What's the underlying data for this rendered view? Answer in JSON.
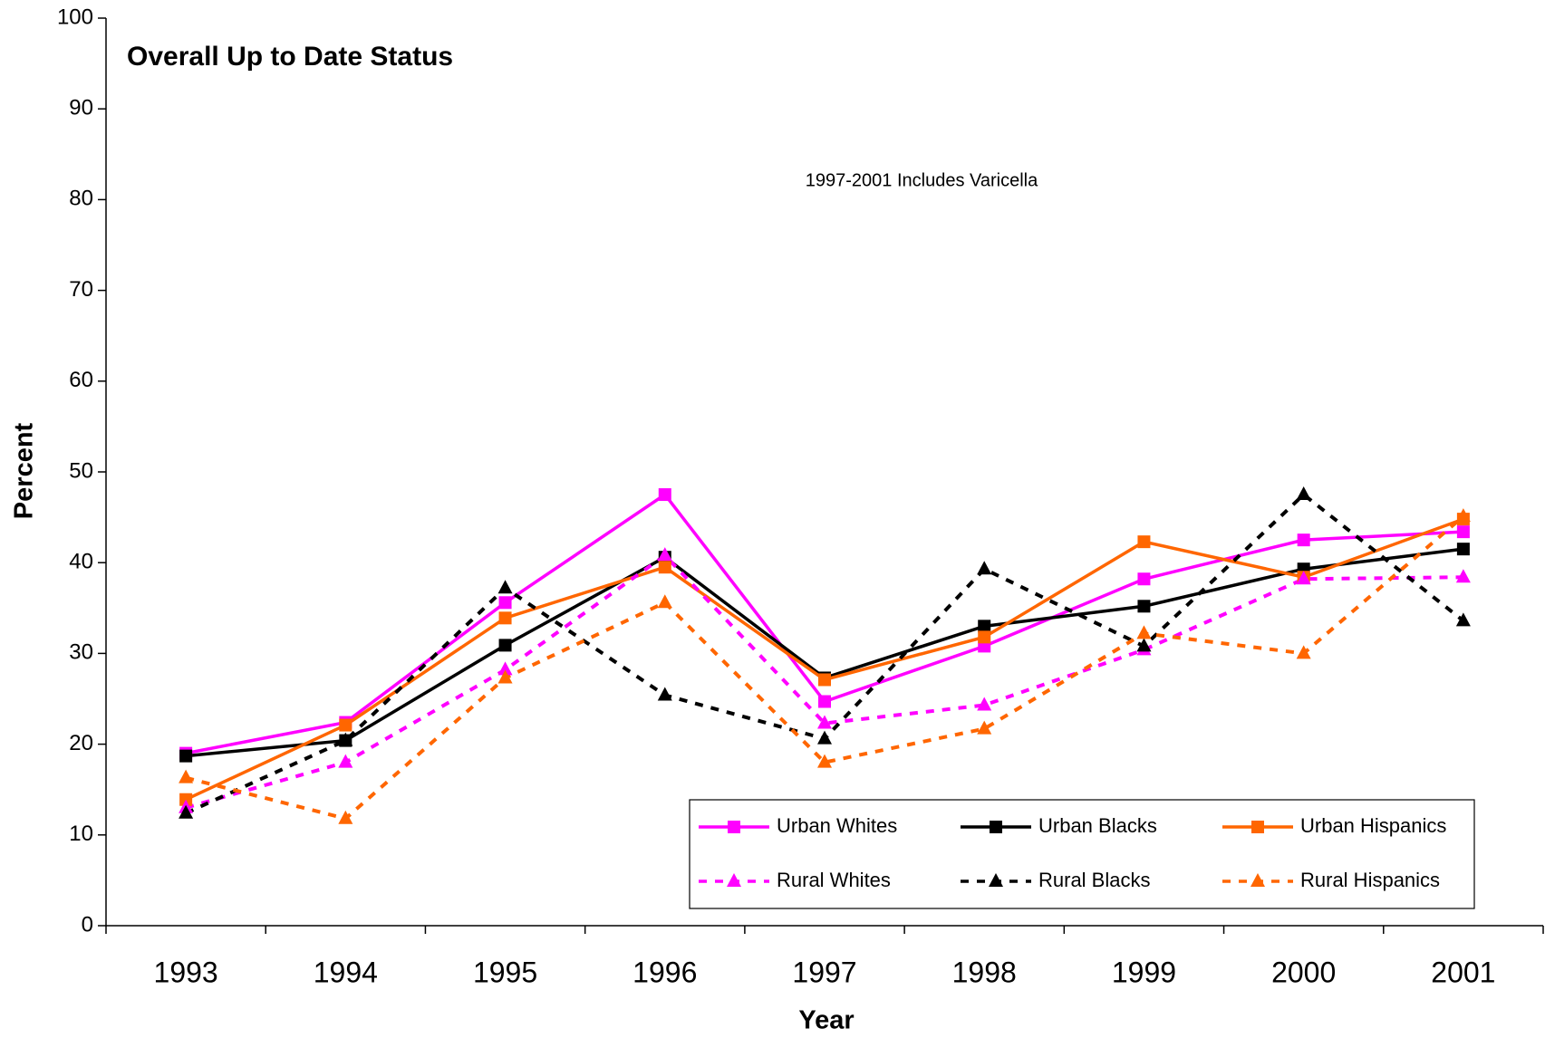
{
  "chart_data": {
    "type": "line",
    "title": "Overall Up to Date Status",
    "annotation": "1997-2001 Includes Varicella",
    "x_label": "Year",
    "y_label": "Percent",
    "categories": [
      "1993",
      "1994",
      "1995",
      "1996",
      "1997",
      "1998",
      "1999",
      "2000",
      "2001"
    ],
    "ylim": [
      0,
      100
    ],
    "yticks": [
      0,
      10,
      20,
      30,
      40,
      50,
      60,
      70,
      80,
      90,
      100
    ],
    "grid": false,
    "legend": "lower right",
    "series": [
      {
        "name": "Urban Whites",
        "color": "#ff00ff",
        "marker": "square",
        "dashed": false,
        "values": [
          19.0,
          22.4,
          35.6,
          47.5,
          24.7,
          30.8,
          38.2,
          42.5,
          43.4
        ]
      },
      {
        "name": "Urban Blacks",
        "color": "#000000",
        "marker": "square",
        "dashed": false,
        "values": [
          18.7,
          20.4,
          30.9,
          40.6,
          27.3,
          33.0,
          35.2,
          39.3,
          41.5
        ]
      },
      {
        "name": "Urban Hispanics",
        "color": "#ff6600",
        "marker": "square",
        "dashed": false,
        "values": [
          13.9,
          22.1,
          33.9,
          39.5,
          27.1,
          31.8,
          42.3,
          38.4,
          44.8
        ]
      },
      {
        "name": "Rural Whites",
        "color": "#ff00ff",
        "marker": "triangle",
        "dashed": true,
        "values": [
          13.0,
          18.0,
          28.2,
          40.8,
          22.3,
          24.3,
          30.4,
          38.2,
          38.4
        ]
      },
      {
        "name": "Rural Blacks",
        "color": "#000000",
        "marker": "triangle",
        "dashed": true,
        "values": [
          12.4,
          20.4,
          37.2,
          25.4,
          20.6,
          39.3,
          30.8,
          47.5,
          33.6
        ]
      },
      {
        "name": "Rural Hispanics",
        "color": "#ff6600",
        "marker": "triangle",
        "dashed": true,
        "values": [
          16.3,
          11.8,
          27.3,
          35.6,
          18.0,
          21.7,
          32.2,
          30.0,
          45.1
        ]
      }
    ]
  }
}
